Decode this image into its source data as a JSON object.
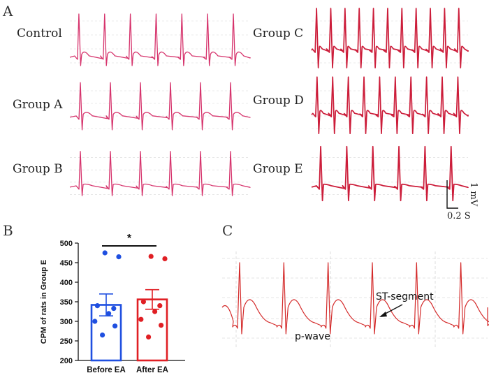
{
  "panels": {
    "a": {
      "letter": "A"
    },
    "b": {
      "letter": "B"
    },
    "c": {
      "letter": "C"
    }
  },
  "ecg_traces": {
    "control": {
      "label": "Control",
      "beats": 7
    },
    "group_a": {
      "label": "Group A",
      "beats": 6
    },
    "group_b": {
      "label": "Group B",
      "beats": 6
    },
    "group_c": {
      "label": "Group C",
      "beats": 11
    },
    "group_d": {
      "label": "Group D",
      "beats": 10
    },
    "group_e": {
      "label": "Group E",
      "beats": 6
    }
  },
  "scale_bar": {
    "voltage": "1 mV",
    "time": "0.2 S"
  },
  "chart_data": {
    "type": "bar",
    "categories": [
      "Before EA",
      "After EA"
    ],
    "values": [
      342,
      356
    ],
    "errors": [
      28,
      25
    ],
    "points": [
      [
        475,
        465,
        340,
        333,
        320,
        300,
        288,
        265
      ],
      [
        466,
        460,
        350,
        340,
        325,
        305,
        290,
        260
      ]
    ],
    "colors": [
      "#1f4fe0",
      "#e01f24"
    ],
    "xlabel": "",
    "ylabel": "CPM of rats in Group E",
    "ylim": [
      200,
      500
    ],
    "yticks": [
      200,
      250,
      300,
      350,
      400,
      450,
      500
    ],
    "significance": "*"
  },
  "panel_c": {
    "beats": 6,
    "annotations": {
      "st_segment": "ST-segment",
      "p_wave": "p-wave"
    },
    "trace_color": "#d42a2a"
  }
}
